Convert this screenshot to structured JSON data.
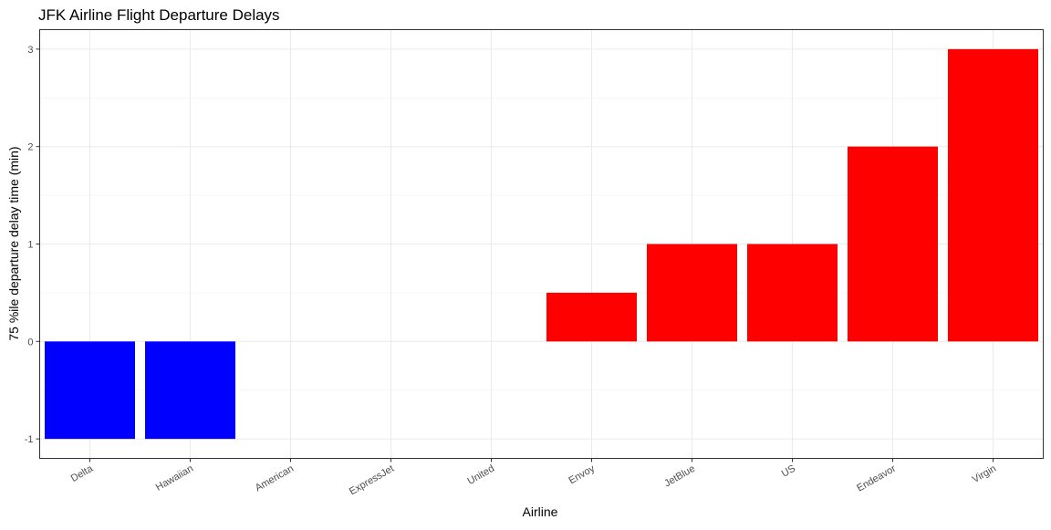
{
  "chart_data": {
    "type": "bar",
    "title": "JFK  Airline Flight Departure Delays",
    "xlabel": "Airline",
    "ylabel": "75 %ile departure delay time (min)",
    "categories": [
      "Delta",
      "Hawaiian",
      "American",
      "ExpressJet",
      "United",
      "Envoy",
      "JetBlue",
      "US",
      "Endeavor",
      "Virgin"
    ],
    "values": [
      -1,
      -1,
      0,
      0,
      0,
      0.5,
      1,
      1,
      2,
      3
    ],
    "bar_colors": [
      "#0000FF",
      "#0000FF",
      "#FF0000",
      "#FF0000",
      "#FF0000",
      "#FF0000",
      "#FF0000",
      "#FF0000",
      "#FF0000",
      "#FF0000"
    ],
    "ylim": [
      -1.2,
      3.2
    ],
    "yticks": [
      -1,
      0,
      1,
      2,
      3
    ],
    "ytick_labels": [
      "-1",
      "0",
      "1",
      "2",
      "3"
    ],
    "grid": true,
    "legend": "none"
  }
}
